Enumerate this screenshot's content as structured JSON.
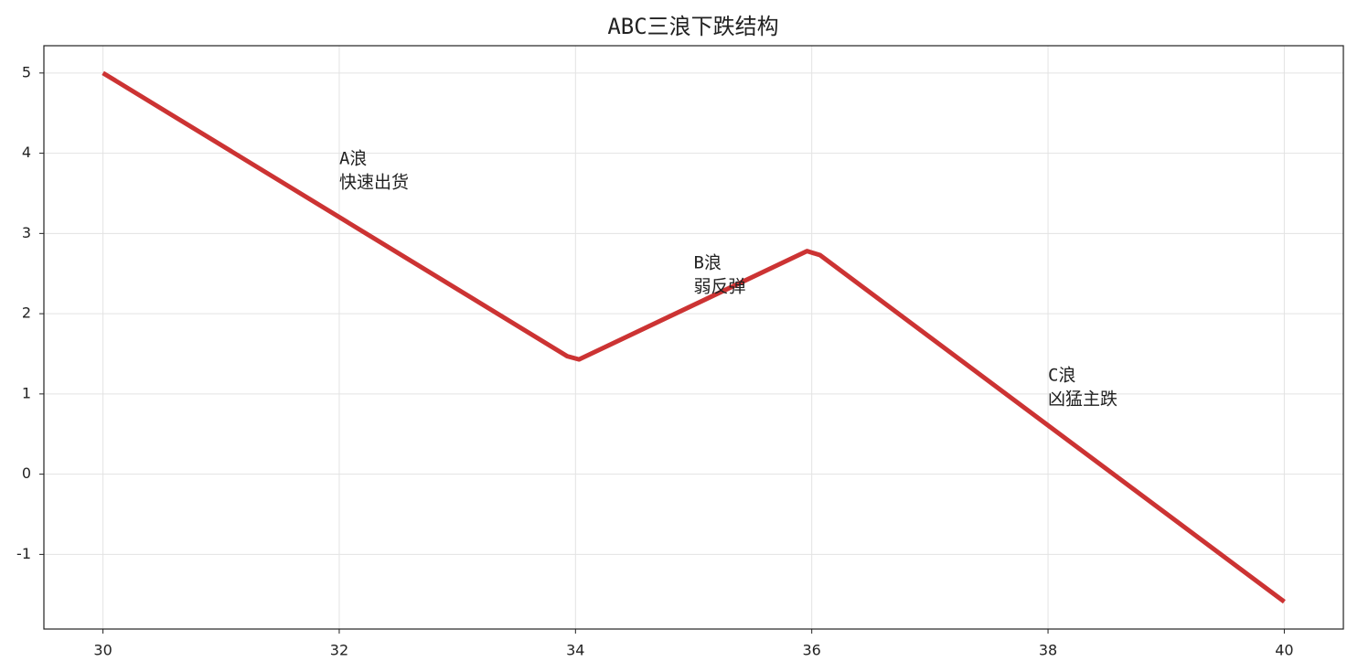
{
  "chart_data": {
    "type": "line",
    "title": "ABC三浪下跌结构",
    "x": [
      30,
      33.93,
      34.03,
      35.96,
      36.07,
      40
    ],
    "series": [
      {
        "color": "#cc3333",
        "values": [
          5,
          1.47,
          1.43,
          2.78,
          2.73,
          -1.59
        ]
      }
    ],
    "xlim": [
      29.5,
      40.5
    ],
    "xticks": [
      30,
      32,
      34,
      36,
      38,
      40
    ],
    "ylim": [
      -1.93,
      5.34
    ],
    "yticks": [
      -1,
      0,
      1,
      2,
      3,
      4,
      5
    ],
    "grid": true,
    "annotations": [
      {
        "lines": [
          "A浪",
          "快速出货"
        ],
        "x": 32,
        "y": 3.5,
        "color": "#8b0000"
      },
      {
        "lines": [
          "B浪",
          "弱反弹"
        ],
        "x": 35,
        "y": 2.2,
        "color": "#006400"
      },
      {
        "lines": [
          "C浪",
          "凶猛主跌"
        ],
        "x": 38,
        "y": 0.8,
        "color": "#8b0000"
      }
    ]
  }
}
